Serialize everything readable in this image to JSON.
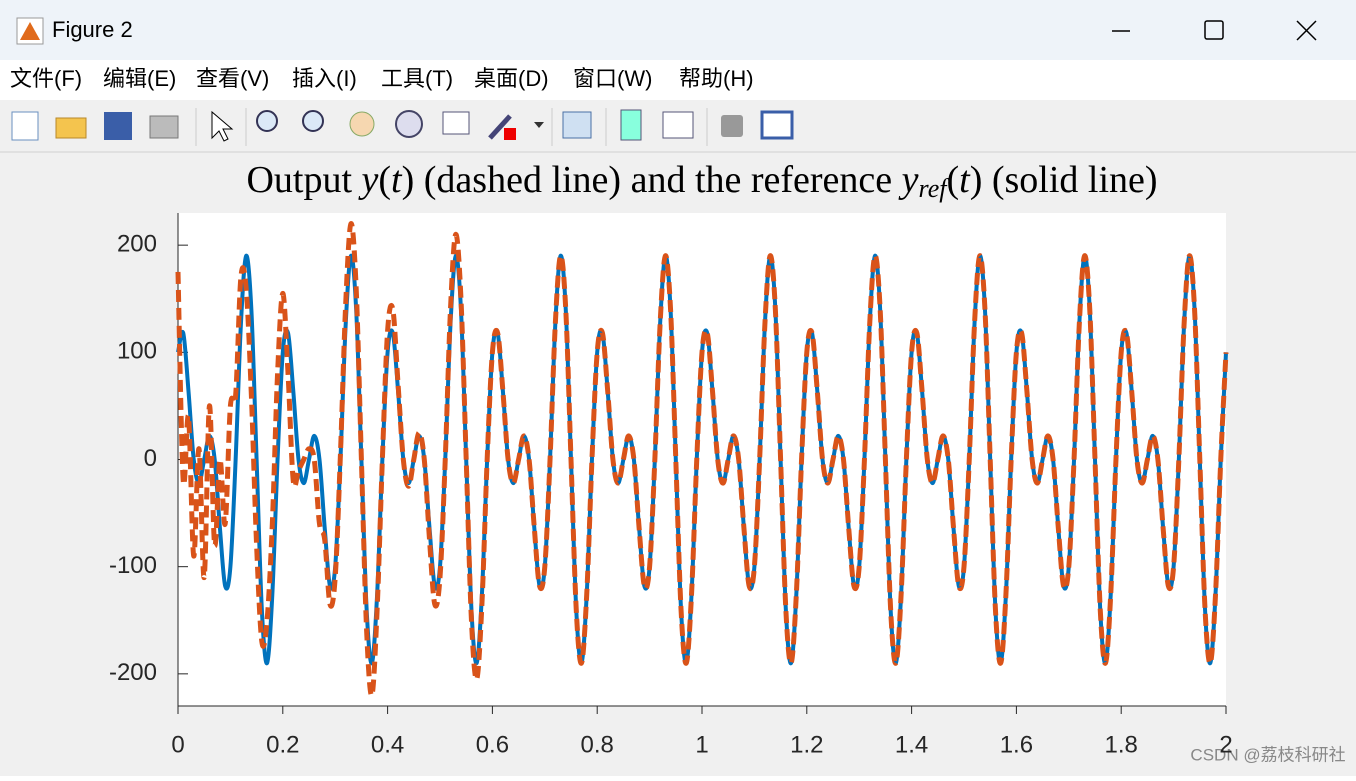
{
  "window": {
    "title": "Figure 2",
    "menu": [
      "文件(F)",
      "编辑(E)",
      "查看(V)",
      "插入(I)",
      "工具(T)",
      "桌面(D)",
      "窗口(W)",
      "帮助(H)"
    ],
    "watermark": "CSDN @荔枝科研社"
  },
  "chart_data": {
    "type": "line",
    "title_parts": [
      "Output ",
      "y",
      "(",
      "t",
      ")",
      " (dashed line) and the reference ",
      "y",
      "ref",
      "(",
      "t",
      ")",
      " (solid line)"
    ],
    "x": [
      0,
      0.01,
      0.02,
      0.03,
      0.04,
      0.05,
      0.06,
      0.07,
      0.08,
      0.09,
      0.1,
      0.11,
      0.12,
      0.13,
      0.14,
      0.15,
      0.16,
      0.17,
      0.18,
      0.19,
      0.2,
      0.21,
      0.22,
      0.23,
      0.24,
      0.25,
      0.26,
      0.27,
      0.28,
      0.29,
      0.3,
      0.31,
      0.32,
      0.33,
      0.34,
      0.35,
      0.36,
      0.37,
      0.38,
      0.39,
      0.4,
      0.41,
      0.42,
      0.43,
      0.44,
      0.45,
      0.46,
      0.47,
      0.48,
      0.49,
      0.5,
      0.51,
      0.52,
      0.53,
      0.54,
      0.55,
      0.56,
      0.57,
      0.58,
      0.59,
      0.6,
      0.61,
      0.62,
      0.63,
      0.64,
      0.65,
      0.66,
      0.67,
      0.68,
      0.69,
      0.7,
      0.71,
      0.72,
      0.73,
      0.74,
      0.75,
      0.76,
      0.77,
      0.78,
      0.79,
      0.8,
      0.81,
      0.82,
      0.83,
      0.84,
      0.85,
      0.86,
      0.87,
      0.88,
      0.89,
      0.9,
      0.91,
      0.92,
      0.93,
      0.94,
      0.95,
      0.96,
      0.97,
      0.98,
      0.99,
      1,
      1.01,
      1.02,
      1.03,
      1.04,
      1.05,
      1.06,
      1.07,
      1.08,
      1.09,
      1.1,
      1.11,
      1.12,
      1.13,
      1.14,
      1.15,
      1.16,
      1.17,
      1.18,
      1.19,
      1.2,
      1.21,
      1.22,
      1.23,
      1.24,
      1.25,
      1.26,
      1.27,
      1.28,
      1.29,
      1.3,
      1.31,
      1.32,
      1.33,
      1.34,
      1.35,
      1.36,
      1.37,
      1.38,
      1.39,
      1.4,
      1.41,
      1.42,
      1.43,
      1.44,
      1.45,
      1.46,
      1.47,
      1.48,
      1.49,
      1.5,
      1.51,
      1.52,
      1.53,
      1.54,
      1.55,
      1.56,
      1.57,
      1.58,
      1.59,
      1.6,
      1.61,
      1.62,
      1.63,
      1.64,
      1.65,
      1.66,
      1.67,
      1.68,
      1.69,
      1.7,
      1.71,
      1.72,
      1.73,
      1.74,
      1.75,
      1.76,
      1.77,
      1.78,
      1.79,
      1.8,
      1.81,
      1.82,
      1.83,
      1.84,
      1.85,
      1.86,
      1.87,
      1.88,
      1.89,
      1.9,
      1.91,
      1.92,
      1.93,
      1.94,
      1.95,
      1.96,
      1.97,
      1.98,
      1.99,
      2
    ],
    "series": [
      {
        "color": "#0072bd",
        "style": "solid",
        "values": [
          100,
          118,
          64,
          0,
          -22,
          0,
          22,
          0,
          -64,
          -118,
          -100,
          0,
          126,
          190,
          140,
          0,
          -140,
          -190,
          -126,
          0,
          100,
          118,
          64,
          0,
          -22,
          0,
          22,
          0,
          -64,
          -118,
          -100,
          0,
          126,
          190,
          140,
          0,
          -140,
          -190,
          -126,
          0,
          100,
          118,
          64,
          0,
          -22,
          0,
          22,
          0,
          -64,
          -118,
          -100,
          0,
          126,
          190,
          140,
          0,
          -140,
          -190,
          -126,
          0,
          100,
          118,
          64,
          0,
          -22,
          0,
          22,
          0,
          -64,
          -118,
          -100,
          0,
          126,
          190,
          140,
          0,
          -140,
          -190,
          -126,
          0,
          100,
          118,
          64,
          0,
          -22,
          0,
          22,
          0,
          -64,
          -118,
          -100,
          0,
          126,
          190,
          140,
          0,
          -140,
          -190,
          -126,
          0,
          100,
          118,
          64,
          0,
          -22,
          0,
          22,
          0,
          -64,
          -118,
          -100,
          0,
          126,
          190,
          140,
          0,
          -140,
          -190,
          -126,
          0,
          100,
          118,
          64,
          0,
          -22,
          0,
          22,
          0,
          -64,
          -118,
          -100,
          0,
          126,
          190,
          140,
          0,
          -140,
          -190,
          -126,
          0,
          100,
          118,
          64,
          0,
          -22,
          0,
          22,
          0,
          -64,
          -118,
          -100,
          0,
          126,
          190,
          140,
          0,
          -140,
          -190,
          -126,
          0,
          100,
          118,
          64,
          0,
          -22,
          0,
          22,
          0,
          -64,
          -118,
          -100,
          0,
          126,
          190,
          140,
          0,
          -140,
          -190,
          -126,
          0,
          100,
          118,
          64,
          0,
          -22,
          0,
          22,
          0,
          -64,
          -118,
          -100,
          0,
          126,
          190,
          140,
          0,
          -140,
          -190,
          -126,
          0,
          100
        ]
      },
      {
        "color": "#d95319",
        "style": "dashed",
        "values": [
          175,
          -20,
          40,
          -90,
          10,
          -110,
          50,
          -80,
          0,
          -60,
          50,
          60,
          170,
          160,
          60,
          -80,
          -170,
          -150,
          -60,
          80,
          155,
          80,
          -20,
          -10,
          0,
          10,
          0,
          -60,
          -75,
          -135,
          -110,
          5,
          145,
          220,
          160,
          0,
          -160,
          -220,
          -140,
          0,
          120,
          140,
          70,
          0,
          -25,
          0,
          25,
          0,
          -75,
          -135,
          -110,
          0,
          140,
          210,
          150,
          0,
          -150,
          -205,
          -135,
          0,
          100,
          118,
          64,
          0,
          -22,
          0,
          22,
          0,
          -64,
          -118,
          -100,
          0,
          126,
          190,
          140,
          0,
          -140,
          -190,
          -126,
          0,
          100,
          118,
          64,
          0,
          -22,
          0,
          22,
          0,
          -64,
          -118,
          -100,
          0,
          126,
          190,
          140,
          0,
          -140,
          -190,
          -126,
          0,
          100,
          118,
          64,
          0,
          -22,
          0,
          22,
          0,
          -64,
          -118,
          -100,
          0,
          126,
          190,
          140,
          0,
          -140,
          -190,
          -126,
          0,
          100,
          118,
          64,
          0,
          -22,
          0,
          22,
          0,
          -64,
          -118,
          -100,
          0,
          126,
          190,
          140,
          0,
          -140,
          -190,
          -126,
          0,
          100,
          118,
          64,
          0,
          -22,
          0,
          22,
          0,
          -64,
          -118,
          -100,
          0,
          126,
          190,
          140,
          0,
          -140,
          -190,
          -126,
          0,
          100,
          118,
          64,
          0,
          -22,
          0,
          22,
          0,
          -64,
          -118,
          -100,
          0,
          126,
          190,
          140,
          0,
          -140,
          -190,
          -126,
          0,
          100,
          118,
          64,
          0,
          -22,
          0,
          22,
          0,
          -64,
          -118,
          -100,
          0,
          126,
          190,
          140,
          0,
          -140,
          -190,
          -126,
          0,
          100
        ]
      }
    ],
    "xlim": [
      0,
      2
    ],
    "xticks": [
      0,
      0.2,
      0.4,
      0.6,
      0.8,
      1,
      1.2,
      1.4,
      1.6,
      1.8,
      2
    ],
    "ylim": [
      -230,
      230
    ],
    "yticks": [
      -200,
      -100,
      0,
      100,
      200
    ],
    "grid": false
  }
}
